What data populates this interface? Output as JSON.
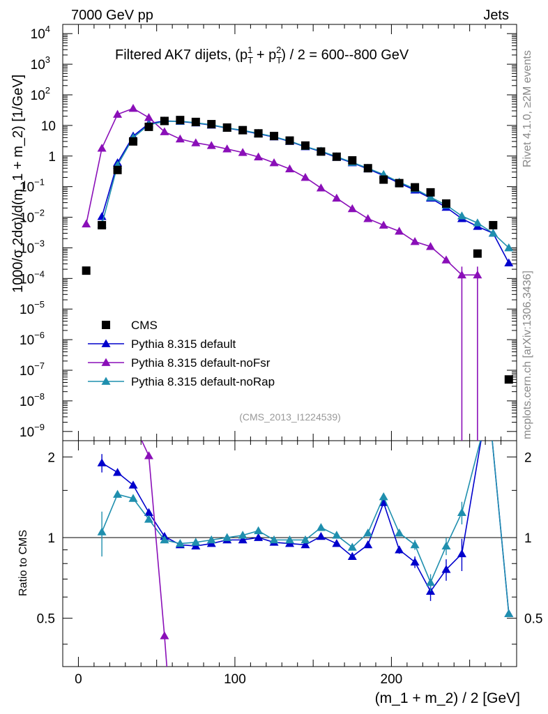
{
  "header": {
    "left": "7000 GeV pp",
    "right": "Jets"
  },
  "side_labels": {
    "rivet": "Rivet 4.1.0, ≥2M events",
    "mcplots": "mcplots.cern.ch [arXiv:1306.3436]"
  },
  "chart_data": {
    "type": "scatter",
    "title": "Filtered AK7 dijets, (p_T^1 + p_T^2) / 2 = 600--800 GeV",
    "title_parts": {
      "prefix": "Filtered AK7 dijets, (p",
      "T": "T",
      "sup1": "1",
      "sup2": "2",
      "plus": " + p",
      "suffix": ") / 2 = 600--800 GeV"
    },
    "analysis_id": "(CMS_2013_I1224539)",
    "xlabel": "(m_1 + m_2) / 2 [GeV]",
    "ylabel_main": "1000/σ  2dσ)/d(m_1 + m_2) [1/GeV]",
    "ylabel_ratio": "Ratio to CMS",
    "xlim": [
      -10,
      280
    ],
    "ylim_main": [
      5e-10,
      20000
    ],
    "ylim_ratio": [
      0.33,
      2.3
    ],
    "x_ticks": [
      "0",
      "100",
      "200"
    ],
    "y_ticks_main": [
      {
        "label": "10",
        "exp": "4"
      },
      {
        "label": "10",
        "exp": "3"
      },
      {
        "label": "10",
        "exp": "2"
      },
      {
        "label": "10",
        "exp": ""
      },
      {
        "label": "1",
        "exp": ""
      },
      {
        "label": "10",
        "exp": "−1"
      },
      {
        "label": "10",
        "exp": "−2"
      },
      {
        "label": "10",
        "exp": "−3"
      },
      {
        "label": "10",
        "exp": "−4"
      },
      {
        "label": "10",
        "exp": "−5"
      },
      {
        "label": "10",
        "exp": "−6"
      },
      {
        "label": "10",
        "exp": "−7"
      },
      {
        "label": "10",
        "exp": "−8"
      },
      {
        "label": "10",
        "exp": "−9"
      }
    ],
    "y_ticks_ratio": [
      "0.5",
      "1",
      "2"
    ],
    "legend": {
      "position": "center-left",
      "entries": [
        "CMS",
        "Pythia 8.315 default",
        "Pythia 8.315 default-noFsr",
        "Pythia 8.315 default-noRap"
      ]
    },
    "data": {
      "name": "CMS",
      "color": "#000000",
      "x": [
        5,
        15,
        25,
        35,
        45,
        55,
        65,
        75,
        85,
        95,
        105,
        115,
        125,
        135,
        145,
        155,
        165,
        175,
        185,
        195,
        205,
        215,
        225,
        235,
        245,
        255,
        265,
        275
      ],
      "y": [
        0.00018,
        0.0055,
        0.35,
        3.0,
        9.0,
        14.0,
        15.0,
        13.0,
        11.0,
        8.5,
        7.0,
        5.5,
        4.5,
        3.2,
        2.2,
        1.4,
        0.95,
        0.72,
        0.4,
        0.17,
        0.13,
        0.095,
        0.065,
        0.028,
        null,
        0.00065,
        0.0055,
        5e-08
      ]
    },
    "series": [
      {
        "name": "Pythia 8.315 default",
        "color": "#0000cc",
        "x": [
          15,
          25,
          35,
          45,
          55,
          65,
          75,
          85,
          95,
          105,
          115,
          125,
          135,
          145,
          155,
          165,
          175,
          185,
          195,
          205,
          215,
          225,
          235,
          245,
          255,
          265,
          275
        ],
        "y": [
          0.0105,
          0.6,
          4.5,
          11.5,
          14.0,
          13.5,
          12.0,
          10.2,
          8.2,
          6.7,
          5.3,
          4.2,
          3.0,
          2.0,
          1.4,
          0.9,
          0.6,
          0.38,
          0.23,
          0.13,
          0.077,
          0.042,
          0.021,
          0.009,
          0.005,
          0.003,
          0.00032
        ],
        "ratio": [
          1.9,
          1.75,
          1.57,
          1.24,
          1.01,
          0.94,
          0.93,
          0.95,
          0.98,
          0.98,
          1.0,
          0.96,
          0.95,
          0.94,
          1.01,
          0.95,
          0.85,
          0.94,
          1.35,
          0.9,
          0.81,
          0.63,
          0.76,
          0.87,
          null,
          null,
          0.52
        ],
        "ratio_err": [
          0.15,
          0.03,
          0.03,
          0.02,
          0.01,
          0.01,
          0.01,
          0.01,
          0.01,
          0.01,
          0.01,
          0.01,
          0.01,
          0.01,
          0.01,
          0.01,
          0.02,
          0.02,
          0.03,
          0.03,
          0.04,
          0.05,
          0.07,
          0.12,
          null,
          null,
          null
        ]
      },
      {
        "name": "Pythia 8.315 default-noFsr",
        "color": "#8a0fb8",
        "x": [
          5,
          15,
          25,
          35,
          45,
          55,
          65,
          75,
          85,
          95,
          105,
          115,
          125,
          135,
          145,
          155,
          165,
          175,
          185,
          195,
          205,
          215,
          225,
          235,
          245,
          255
        ],
        "y": [
          0.006,
          1.8,
          23.0,
          36.0,
          18.0,
          6.2,
          3.6,
          2.7,
          2.2,
          1.7,
          1.3,
          0.93,
          0.6,
          0.38,
          0.2,
          0.09,
          0.042,
          0.019,
          0.009,
          0.0055,
          0.0035,
          0.0016,
          0.0011,
          0.0004,
          0.00013,
          0.00013
        ],
        "ratio": [
          null,
          null,
          null,
          null,
          2.02,
          0.43
        ],
        "ratio_err": [
          null,
          null,
          null,
          null,
          null,
          null
        ]
      },
      {
        "name": "Pythia 8.315 default-noRap",
        "color": "#1f8fae",
        "x": [
          15,
          25,
          35,
          45,
          55,
          65,
          75,
          85,
          95,
          105,
          115,
          125,
          135,
          145,
          155,
          165,
          175,
          185,
          195,
          205,
          215,
          225,
          235,
          245,
          255,
          265,
          275
        ],
        "y": [
          0.0058,
          0.5,
          4.0,
          10.5,
          13.5,
          13.8,
          12.2,
          10.5,
          8.3,
          6.9,
          5.5,
          4.3,
          3.1,
          2.05,
          1.45,
          0.95,
          0.62,
          0.4,
          0.25,
          0.14,
          0.085,
          0.045,
          0.025,
          0.011,
          0.0065,
          0.003,
          0.001
        ],
        "ratio": [
          1.05,
          1.45,
          1.4,
          1.17,
          0.98,
          0.95,
          0.96,
          0.98,
          1.0,
          1.02,
          1.06,
          0.98,
          0.98,
          0.98,
          1.09,
          1.02,
          0.92,
          1.04,
          1.42,
          1.04,
          0.94,
          0.68,
          0.93,
          1.24,
          null,
          null,
          0.52
        ],
        "ratio_err": [
          0.2,
          0.03,
          0.03,
          0.02,
          0.01,
          0.01,
          0.01,
          0.01,
          0.01,
          0.01,
          0.01,
          0.01,
          0.01,
          0.01,
          0.01,
          0.01,
          0.02,
          0.02,
          0.03,
          0.03,
          0.04,
          0.05,
          0.07,
          0.12,
          null,
          null,
          null
        ]
      }
    ]
  }
}
